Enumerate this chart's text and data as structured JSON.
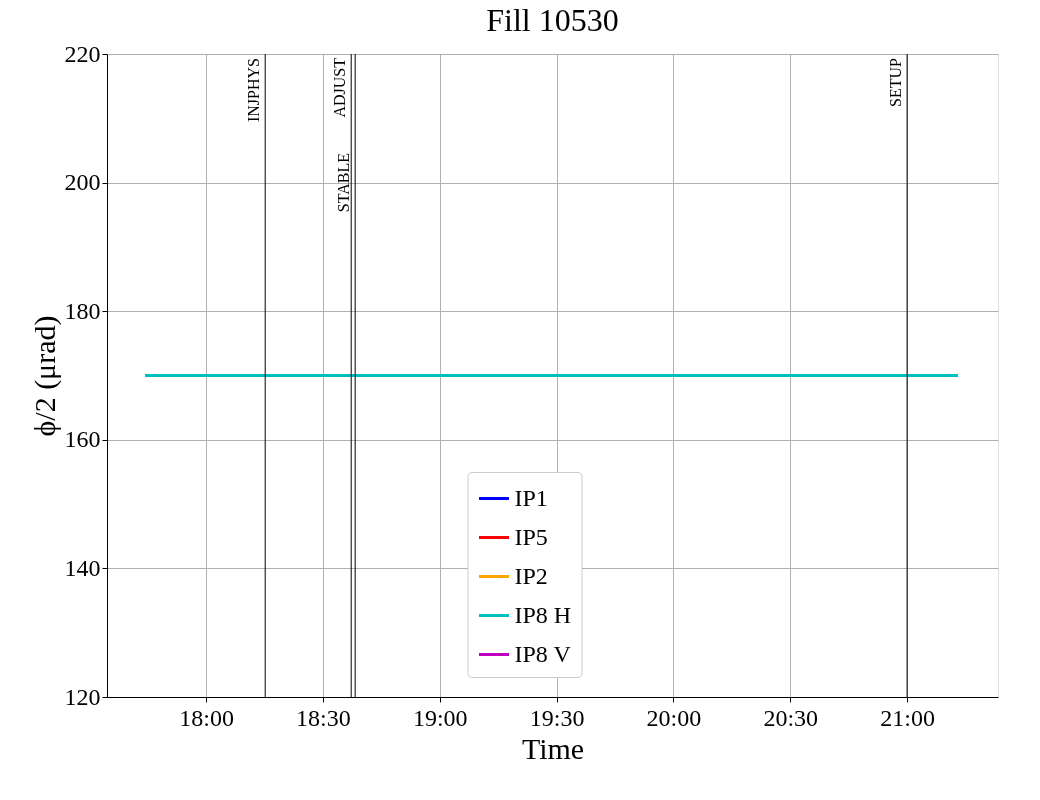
{
  "chart_data": {
    "type": "line",
    "title": "Fill 10530",
    "xlabel": "Time",
    "ylabel": "ϕ/2 (μrad)",
    "xlim": [
      17.576,
      21.389
    ],
    "ylim": [
      120,
      220
    ],
    "xticks": [
      {
        "value": 18,
        "label": "18:00"
      },
      {
        "value": 18.5,
        "label": "18:30"
      },
      {
        "value": 19,
        "label": "19:00"
      },
      {
        "value": 19.5,
        "label": "19:30"
      },
      {
        "value": 20,
        "label": "20:00"
      },
      {
        "value": 20.5,
        "label": "20:30"
      },
      {
        "value": 21,
        "label": "21:00"
      }
    ],
    "yticks": [
      120,
      140,
      160,
      180,
      200,
      220
    ],
    "series": [
      {
        "name": "IP1",
        "color": "#0000ff"
      },
      {
        "name": "IP5",
        "color": "#ff0000"
      },
      {
        "name": "IP2",
        "color": "#ffa500"
      },
      {
        "name": "IP8 H",
        "color": "#00bfbf",
        "x": [
          17.739,
          21.218
        ],
        "values": [
          170,
          170
        ]
      },
      {
        "name": "IP8 V",
        "color": "#bf00bf"
      }
    ],
    "ref_lines": [
      {
        "axis": "x",
        "value": 18.253,
        "label": "INJPHYS",
        "color": "#000000"
      },
      {
        "axis": "x",
        "value": 18.621,
        "label": "ADJUST",
        "color": "#000000"
      },
      {
        "axis": "x",
        "value": 18.638,
        "label": "STABLE",
        "color": "#000000"
      },
      {
        "axis": "x",
        "value": 21.0,
        "label": "SETUP",
        "color": "#000000"
      }
    ],
    "grid": true,
    "legend": "bottom",
    "line_style": "solid",
    "marker": "none"
  }
}
